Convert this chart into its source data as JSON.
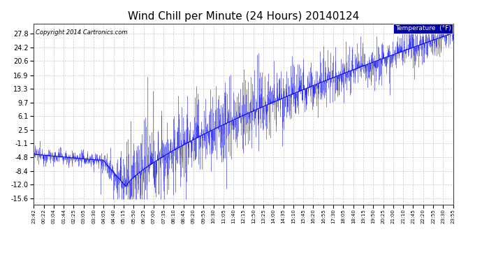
{
  "title": "Wind Chill per Minute (24 Hours) 20140124",
  "copyright_text": "Copyright 2014 Cartronics.com",
  "legend_label": "Temperature  (°F)",
  "yticks": [
    27.8,
    24.2,
    20.6,
    16.9,
    13.3,
    9.7,
    6.1,
    2.5,
    -1.1,
    -4.8,
    -8.4,
    -12.0,
    -15.6
  ],
  "ylim": [
    -17.2,
    30.5
  ],
  "xtick_labels": [
    "23:42",
    "00:22",
    "01:04",
    "01:44",
    "02:25",
    "03:05",
    "03:30",
    "04:05",
    "04:40",
    "05:15",
    "05:50",
    "06:25",
    "07:00",
    "07:35",
    "08:10",
    "08:45",
    "09:20",
    "09:55",
    "10:30",
    "11:05",
    "11:40",
    "12:15",
    "12:50",
    "13:25",
    "14:00",
    "14:35",
    "15:10",
    "15:45",
    "16:20",
    "16:55",
    "17:30",
    "18:05",
    "18:40",
    "19:15",
    "19:50",
    "20:25",
    "21:00",
    "21:10",
    "21:45",
    "22:20",
    "22:55",
    "23:30",
    "23:55"
  ],
  "line_color": "#0000EE",
  "background_color": "#ffffff",
  "grid_color": "#bbbbbb",
  "title_fontsize": 11,
  "legend_bg": "#0000AA",
  "legend_text_color": "#ffffff",
  "seed": 12345
}
